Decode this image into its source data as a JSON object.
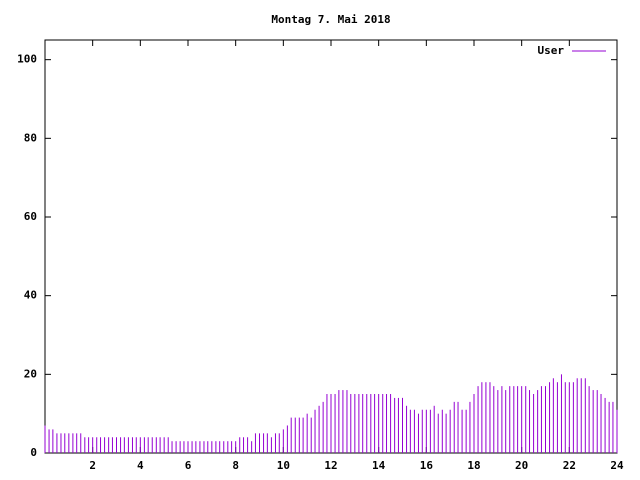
{
  "chart_data": {
    "type": "impulses",
    "title": "Montag 7. Mai 2018",
    "x": [
      0,
      0.17,
      0.33,
      0.5,
      0.67,
      0.83,
      1,
      1.17,
      1.33,
      1.5,
      1.67,
      1.83,
      2,
      2.17,
      2.33,
      2.5,
      2.67,
      2.83,
      3,
      3.17,
      3.33,
      3.5,
      3.67,
      3.83,
      4,
      4.17,
      4.33,
      4.5,
      4.67,
      4.83,
      5,
      5.17,
      5.33,
      5.5,
      5.67,
      5.83,
      6,
      6.17,
      6.33,
      6.5,
      6.67,
      6.83,
      7,
      7.17,
      7.33,
      7.5,
      7.67,
      7.83,
      8,
      8.17,
      8.33,
      8.5,
      8.67,
      8.83,
      9,
      9.17,
      9.33,
      9.5,
      9.67,
      9.83,
      10,
      10.17,
      10.33,
      10.5,
      10.67,
      10.83,
      11,
      11.17,
      11.33,
      11.5,
      11.67,
      11.83,
      12,
      12.17,
      12.33,
      12.5,
      12.67,
      12.83,
      13,
      13.17,
      13.33,
      13.5,
      13.67,
      13.83,
      14,
      14.17,
      14.33,
      14.5,
      14.67,
      14.83,
      15,
      15.17,
      15.33,
      15.5,
      15.67,
      15.83,
      16,
      16.17,
      16.33,
      16.5,
      16.67,
      16.83,
      17,
      17.17,
      17.33,
      17.5,
      17.67,
      17.83,
      18,
      18.17,
      18.33,
      18.5,
      18.67,
      18.83,
      19,
      19.17,
      19.33,
      19.5,
      19.67,
      19.83,
      20,
      20.17,
      20.33,
      20.5,
      20.67,
      20.83,
      21,
      21.17,
      21.33,
      21.5,
      21.67,
      21.83,
      22,
      22.17,
      22.33,
      22.5,
      22.67,
      22.83,
      23,
      23.17,
      23.33,
      23.5,
      23.67,
      23.83,
      24
    ],
    "series": [
      {
        "name": "User",
        "color": "#9400d3",
        "values": [
          7,
          6,
          6,
          5,
          5,
          5,
          5,
          5,
          5,
          5,
          4,
          4,
          4,
          4,
          4,
          4,
          4,
          4,
          4,
          4,
          4,
          4,
          4,
          4,
          4,
          4,
          4,
          4,
          4,
          4,
          4,
          4,
          3,
          3,
          3,
          3,
          3,
          3,
          3,
          3,
          3,
          3,
          3,
          3,
          3,
          3,
          3,
          3,
          3,
          4,
          4,
          4,
          3,
          5,
          5,
          5,
          5,
          4,
          5,
          5,
          6,
          7,
          9,
          9,
          9,
          9,
          10,
          9,
          11,
          12,
          13,
          15,
          15,
          15,
          16,
          16,
          16,
          15,
          15,
          15,
          15,
          15,
          15,
          15,
          15,
          15,
          15,
          15,
          14,
          14,
          14,
          12,
          11,
          11,
          10,
          11,
          11,
          11,
          12,
          10,
          11,
          10,
          11,
          13,
          13,
          11,
          11,
          13,
          15,
          17,
          18,
          18,
          18,
          17,
          16,
          17,
          16,
          17,
          17,
          17,
          17,
          17,
          16,
          15,
          16,
          17,
          17,
          18,
          19,
          18,
          20,
          18,
          18,
          18,
          19,
          19,
          19,
          17,
          16,
          16,
          15,
          14,
          13,
          13,
          11
        ]
      }
    ],
    "xlim": [
      0,
      24
    ],
    "xticks": [
      2,
      4,
      6,
      8,
      10,
      12,
      14,
      16,
      18,
      20,
      22,
      24
    ],
    "ylim": [
      0,
      105
    ],
    "yticks": [
      0,
      20,
      40,
      60,
      80,
      100
    ],
    "legend": "top-right"
  }
}
